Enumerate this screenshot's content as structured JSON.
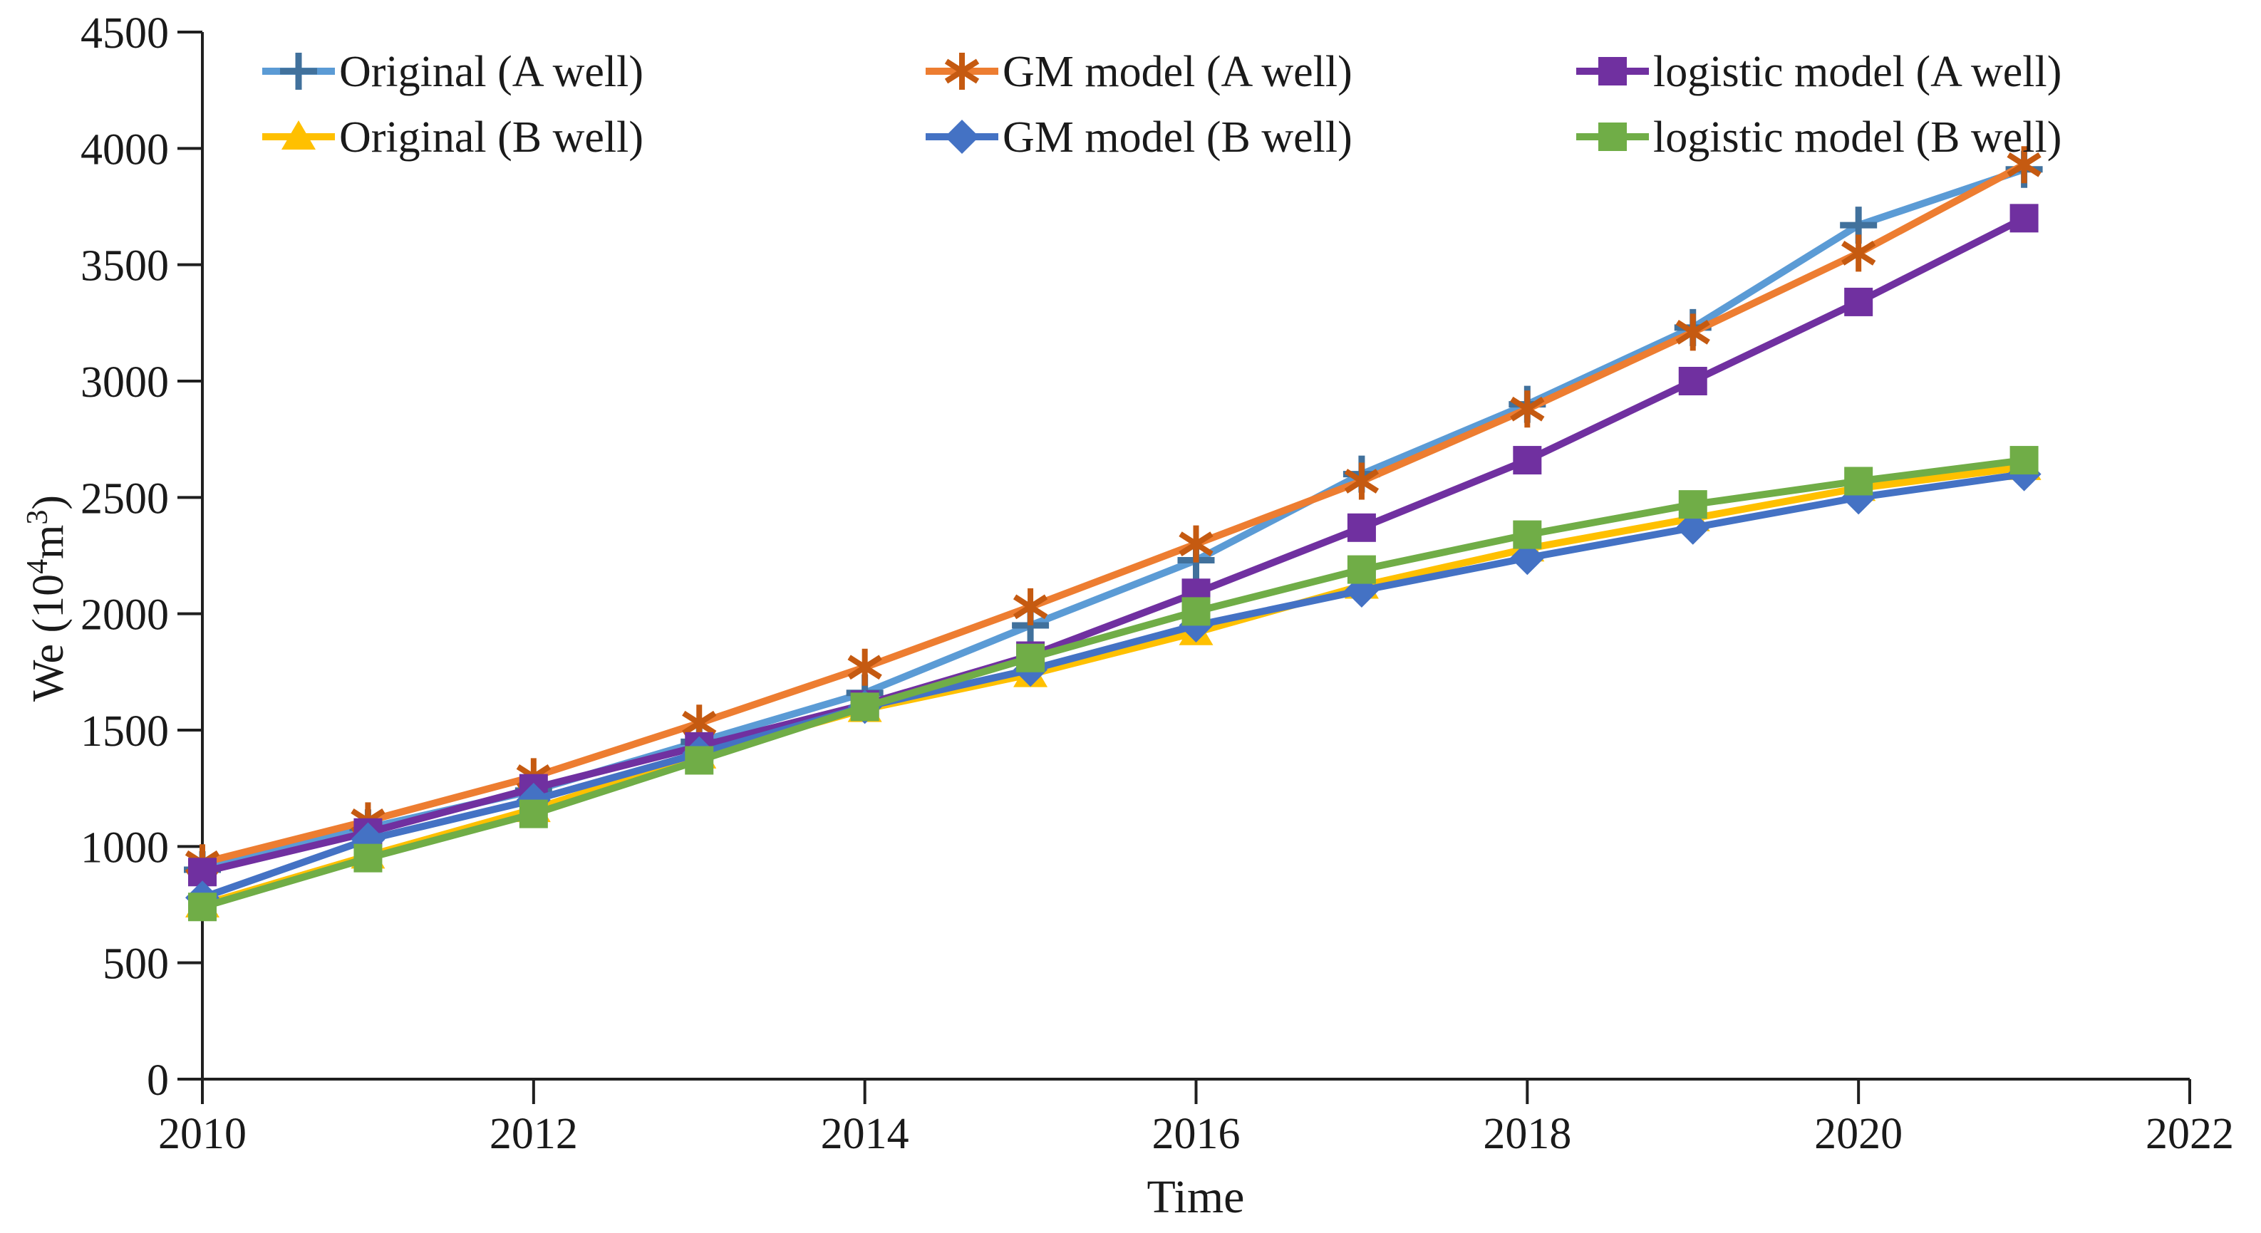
{
  "chart_data": {
    "type": "line",
    "title": "",
    "xlabel": "Time",
    "ylabel": "We (10⁴m³)",
    "x": [
      2010,
      2011,
      2012,
      2013,
      2014,
      2015,
      2016,
      2017,
      2018,
      2019,
      2020,
      2021
    ],
    "xlim": [
      2010,
      2022
    ],
    "ylim": [
      0,
      4500
    ],
    "xticks": [
      2010,
      2012,
      2014,
      2016,
      2018,
      2020,
      2022
    ],
    "yticks": [
      0,
      500,
      1000,
      1500,
      2000,
      2500,
      3000,
      3500,
      4000,
      4500
    ],
    "grid": false,
    "legend_position": "top-inside",
    "legend_rows": 2,
    "legend_columns": 3,
    "axis_color": "#1f1f1f",
    "text_color": "#1a1a1a",
    "series": [
      {
        "name": "Original (A well)",
        "color": "#5B9BD5",
        "marker": "plus",
        "marker_color": "#41719C",
        "values": [
          900,
          1080,
          1240,
          1450,
          1660,
          1950,
          2230,
          2600,
          2900,
          3230,
          3670,
          3910
        ]
      },
      {
        "name": "GM model (A well)",
        "color": "#ED7D31",
        "marker": "asterisk",
        "marker_color": "#C55A11",
        "values": [
          930,
          1110,
          1300,
          1530,
          1770,
          2030,
          2300,
          2570,
          2880,
          3210,
          3550,
          3930
        ]
      },
      {
        "name": "logistic model (A well)",
        "color": "#7030A0",
        "marker": "square",
        "marker_color": "#7030A0",
        "values": [
          890,
          1060,
          1250,
          1430,
          1610,
          1820,
          2090,
          2370,
          2660,
          3000,
          3340,
          3700
        ]
      },
      {
        "name": "Original (B well)",
        "color": "#FFC000",
        "marker": "triangle",
        "marker_color": "#FFC000",
        "values": [
          750,
          960,
          1160,
          1390,
          1590,
          1740,
          1920,
          2120,
          2280,
          2410,
          2540,
          2630
        ]
      },
      {
        "name": "GM model (B well)",
        "color": "#4472C4",
        "marker": "diamond",
        "marker_color": "#4472C4",
        "values": [
          780,
          1030,
          1200,
          1400,
          1600,
          1760,
          1950,
          2100,
          2240,
          2370,
          2500,
          2600
        ]
      },
      {
        "name": "logistic model (B well)",
        "color": "#70AD47",
        "marker": "square",
        "marker_color": "#70AD47",
        "values": [
          740,
          950,
          1140,
          1370,
          1600,
          1810,
          2010,
          2190,
          2340,
          2470,
          2570,
          2660
        ]
      }
    ]
  }
}
